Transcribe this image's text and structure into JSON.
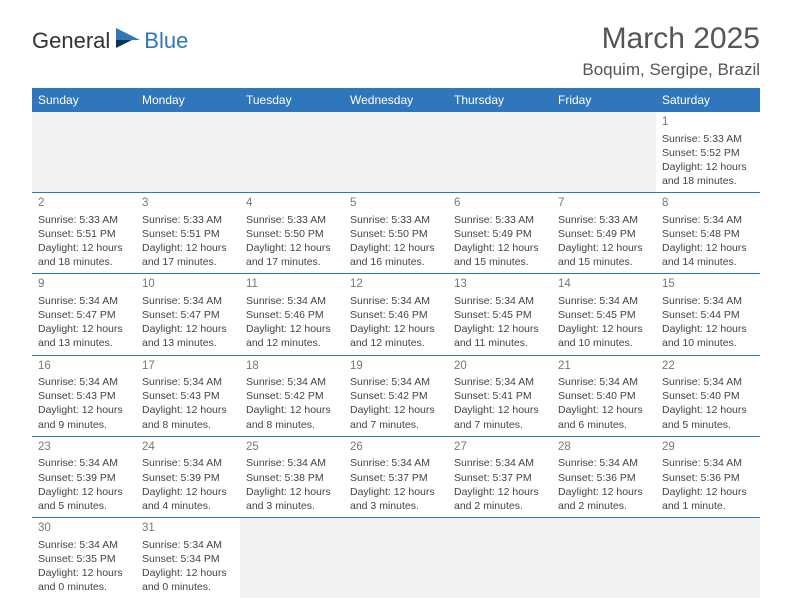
{
  "brand": {
    "part1": "General",
    "part2": "Blue"
  },
  "title": {
    "month": "March 2025",
    "location": "Boquim, Sergipe, Brazil"
  },
  "colors": {
    "accent": "#2f76bc",
    "header_text": "#ffffff",
    "empty_bg": "#f2f2f2",
    "border": "#2f76bc"
  },
  "weekdays": [
    "Sunday",
    "Monday",
    "Tuesday",
    "Wednesday",
    "Thursday",
    "Friday",
    "Saturday"
  ],
  "weeks": [
    [
      null,
      null,
      null,
      null,
      null,
      null,
      {
        "n": "1",
        "sr": "Sunrise: 5:33 AM",
        "ss": "Sunset: 5:52 PM",
        "dl": "Daylight: 12 hours and 18 minutes."
      }
    ],
    [
      {
        "n": "2",
        "sr": "Sunrise: 5:33 AM",
        "ss": "Sunset: 5:51 PM",
        "dl": "Daylight: 12 hours and 18 minutes."
      },
      {
        "n": "3",
        "sr": "Sunrise: 5:33 AM",
        "ss": "Sunset: 5:51 PM",
        "dl": "Daylight: 12 hours and 17 minutes."
      },
      {
        "n": "4",
        "sr": "Sunrise: 5:33 AM",
        "ss": "Sunset: 5:50 PM",
        "dl": "Daylight: 12 hours and 17 minutes."
      },
      {
        "n": "5",
        "sr": "Sunrise: 5:33 AM",
        "ss": "Sunset: 5:50 PM",
        "dl": "Daylight: 12 hours and 16 minutes."
      },
      {
        "n": "6",
        "sr": "Sunrise: 5:33 AM",
        "ss": "Sunset: 5:49 PM",
        "dl": "Daylight: 12 hours and 15 minutes."
      },
      {
        "n": "7",
        "sr": "Sunrise: 5:33 AM",
        "ss": "Sunset: 5:49 PM",
        "dl": "Daylight: 12 hours and 15 minutes."
      },
      {
        "n": "8",
        "sr": "Sunrise: 5:34 AM",
        "ss": "Sunset: 5:48 PM",
        "dl": "Daylight: 12 hours and 14 minutes."
      }
    ],
    [
      {
        "n": "9",
        "sr": "Sunrise: 5:34 AM",
        "ss": "Sunset: 5:47 PM",
        "dl": "Daylight: 12 hours and 13 minutes."
      },
      {
        "n": "10",
        "sr": "Sunrise: 5:34 AM",
        "ss": "Sunset: 5:47 PM",
        "dl": "Daylight: 12 hours and 13 minutes."
      },
      {
        "n": "11",
        "sr": "Sunrise: 5:34 AM",
        "ss": "Sunset: 5:46 PM",
        "dl": "Daylight: 12 hours and 12 minutes."
      },
      {
        "n": "12",
        "sr": "Sunrise: 5:34 AM",
        "ss": "Sunset: 5:46 PM",
        "dl": "Daylight: 12 hours and 12 minutes."
      },
      {
        "n": "13",
        "sr": "Sunrise: 5:34 AM",
        "ss": "Sunset: 5:45 PM",
        "dl": "Daylight: 12 hours and 11 minutes."
      },
      {
        "n": "14",
        "sr": "Sunrise: 5:34 AM",
        "ss": "Sunset: 5:45 PM",
        "dl": "Daylight: 12 hours and 10 minutes."
      },
      {
        "n": "15",
        "sr": "Sunrise: 5:34 AM",
        "ss": "Sunset: 5:44 PM",
        "dl": "Daylight: 12 hours and 10 minutes."
      }
    ],
    [
      {
        "n": "16",
        "sr": "Sunrise: 5:34 AM",
        "ss": "Sunset: 5:43 PM",
        "dl": "Daylight: 12 hours and 9 minutes."
      },
      {
        "n": "17",
        "sr": "Sunrise: 5:34 AM",
        "ss": "Sunset: 5:43 PM",
        "dl": "Daylight: 12 hours and 8 minutes."
      },
      {
        "n": "18",
        "sr": "Sunrise: 5:34 AM",
        "ss": "Sunset: 5:42 PM",
        "dl": "Daylight: 12 hours and 8 minutes."
      },
      {
        "n": "19",
        "sr": "Sunrise: 5:34 AM",
        "ss": "Sunset: 5:42 PM",
        "dl": "Daylight: 12 hours and 7 minutes."
      },
      {
        "n": "20",
        "sr": "Sunrise: 5:34 AM",
        "ss": "Sunset: 5:41 PM",
        "dl": "Daylight: 12 hours and 7 minutes."
      },
      {
        "n": "21",
        "sr": "Sunrise: 5:34 AM",
        "ss": "Sunset: 5:40 PM",
        "dl": "Daylight: 12 hours and 6 minutes."
      },
      {
        "n": "22",
        "sr": "Sunrise: 5:34 AM",
        "ss": "Sunset: 5:40 PM",
        "dl": "Daylight: 12 hours and 5 minutes."
      }
    ],
    [
      {
        "n": "23",
        "sr": "Sunrise: 5:34 AM",
        "ss": "Sunset: 5:39 PM",
        "dl": "Daylight: 12 hours and 5 minutes."
      },
      {
        "n": "24",
        "sr": "Sunrise: 5:34 AM",
        "ss": "Sunset: 5:39 PM",
        "dl": "Daylight: 12 hours and 4 minutes."
      },
      {
        "n": "25",
        "sr": "Sunrise: 5:34 AM",
        "ss": "Sunset: 5:38 PM",
        "dl": "Daylight: 12 hours and 3 minutes."
      },
      {
        "n": "26",
        "sr": "Sunrise: 5:34 AM",
        "ss": "Sunset: 5:37 PM",
        "dl": "Daylight: 12 hours and 3 minutes."
      },
      {
        "n": "27",
        "sr": "Sunrise: 5:34 AM",
        "ss": "Sunset: 5:37 PM",
        "dl": "Daylight: 12 hours and 2 minutes."
      },
      {
        "n": "28",
        "sr": "Sunrise: 5:34 AM",
        "ss": "Sunset: 5:36 PM",
        "dl": "Daylight: 12 hours and 2 minutes."
      },
      {
        "n": "29",
        "sr": "Sunrise: 5:34 AM",
        "ss": "Sunset: 5:36 PM",
        "dl": "Daylight: 12 hours and 1 minute."
      }
    ],
    [
      {
        "n": "30",
        "sr": "Sunrise: 5:34 AM",
        "ss": "Sunset: 5:35 PM",
        "dl": "Daylight: 12 hours and 0 minutes."
      },
      {
        "n": "31",
        "sr": "Sunrise: 5:34 AM",
        "ss": "Sunset: 5:34 PM",
        "dl": "Daylight: 12 hours and 0 minutes."
      },
      null,
      null,
      null,
      null,
      null
    ]
  ]
}
